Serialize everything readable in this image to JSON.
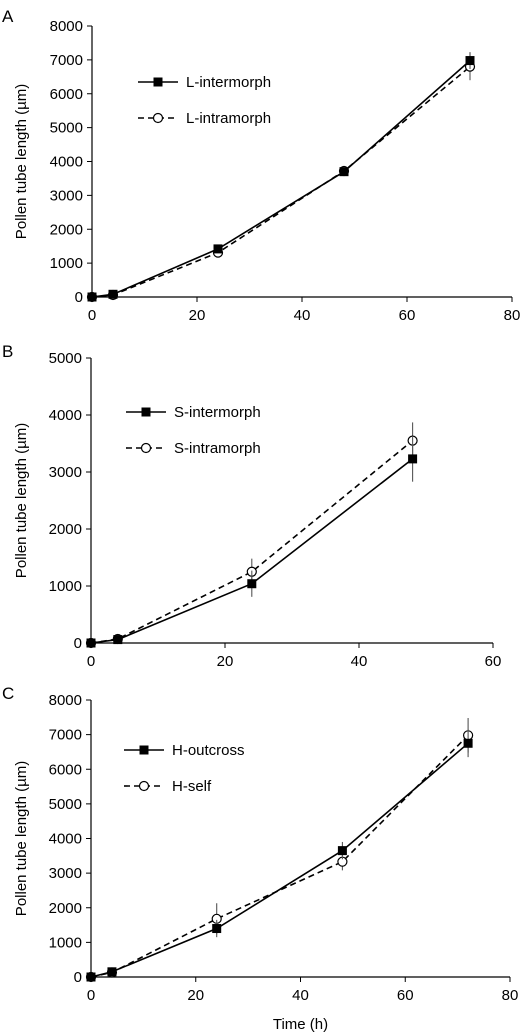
{
  "chart_data": [
    {
      "panel_label": "A",
      "type": "line",
      "title": "",
      "xlabel": "",
      "ylabel": "Pollen tube length (µm)",
      "xlim": [
        0,
        80
      ],
      "ylim": [
        0,
        8000
      ],
      "xticks": [
        0,
        20,
        40,
        60,
        80
      ],
      "yticks": [
        0,
        1000,
        2000,
        3000,
        4000,
        5000,
        6000,
        7000,
        8000
      ],
      "grid": false,
      "legend_position": "top-left",
      "series": [
        {
          "name": "L-intermorph",
          "marker": "filled-square",
          "line": "solid",
          "x": [
            0,
            4,
            24,
            48,
            72
          ],
          "y": [
            0,
            80,
            1420,
            3700,
            6980
          ],
          "err": [
            0,
            20,
            90,
            120,
            250
          ]
        },
        {
          "name": "L-intramorph",
          "marker": "open-circle",
          "line": "dashed",
          "x": [
            0,
            4,
            24,
            48,
            72
          ],
          "y": [
            0,
            60,
            1310,
            3720,
            6800
          ],
          "err": [
            0,
            20,
            80,
            150,
            400
          ]
        }
      ]
    },
    {
      "panel_label": "B",
      "type": "line",
      "title": "",
      "xlabel": "",
      "ylabel": "Pollen tube length (µm)",
      "xlim": [
        0,
        60
      ],
      "ylim": [
        0,
        5000
      ],
      "xticks": [
        0,
        20,
        40,
        60
      ],
      "yticks": [
        0,
        1000,
        2000,
        3000,
        4000,
        5000
      ],
      "grid": false,
      "legend_position": "top-left",
      "series": [
        {
          "name": "S-intermorph",
          "marker": "filled-square",
          "line": "solid",
          "x": [
            0,
            4,
            24,
            48
          ],
          "y": [
            0,
            60,
            1040,
            3230
          ],
          "err": [
            0,
            20,
            230,
            400
          ]
        },
        {
          "name": "S-intramorph",
          "marker": "open-circle",
          "line": "dashed",
          "x": [
            0,
            4,
            24,
            48
          ],
          "y": [
            0,
            70,
            1250,
            3550
          ],
          "err": [
            0,
            20,
            230,
            320
          ]
        }
      ]
    },
    {
      "panel_label": "C",
      "type": "line",
      "title": "",
      "xlabel": "Time (h)",
      "ylabel": "Pollen tube length (µm)",
      "xlim": [
        0,
        80
      ],
      "ylim": [
        0,
        8000
      ],
      "xticks": [
        0,
        20,
        40,
        60,
        80
      ],
      "yticks": [
        0,
        1000,
        2000,
        3000,
        4000,
        5000,
        6000,
        7000,
        8000
      ],
      "grid": false,
      "legend_position": "top-left",
      "series": [
        {
          "name": "H-outcross",
          "marker": "filled-square",
          "line": "solid",
          "x": [
            0,
            4,
            24,
            48,
            72
          ],
          "y": [
            0,
            150,
            1400,
            3650,
            6750
          ],
          "err": [
            0,
            40,
            250,
            250,
            400
          ]
        },
        {
          "name": "H-self",
          "marker": "open-circle",
          "line": "dashed",
          "x": [
            0,
            4,
            24,
            48,
            72
          ],
          "y": [
            0,
            130,
            1680,
            3330,
            6980
          ],
          "err": [
            0,
            40,
            450,
            250,
            500
          ]
        }
      ]
    }
  ]
}
